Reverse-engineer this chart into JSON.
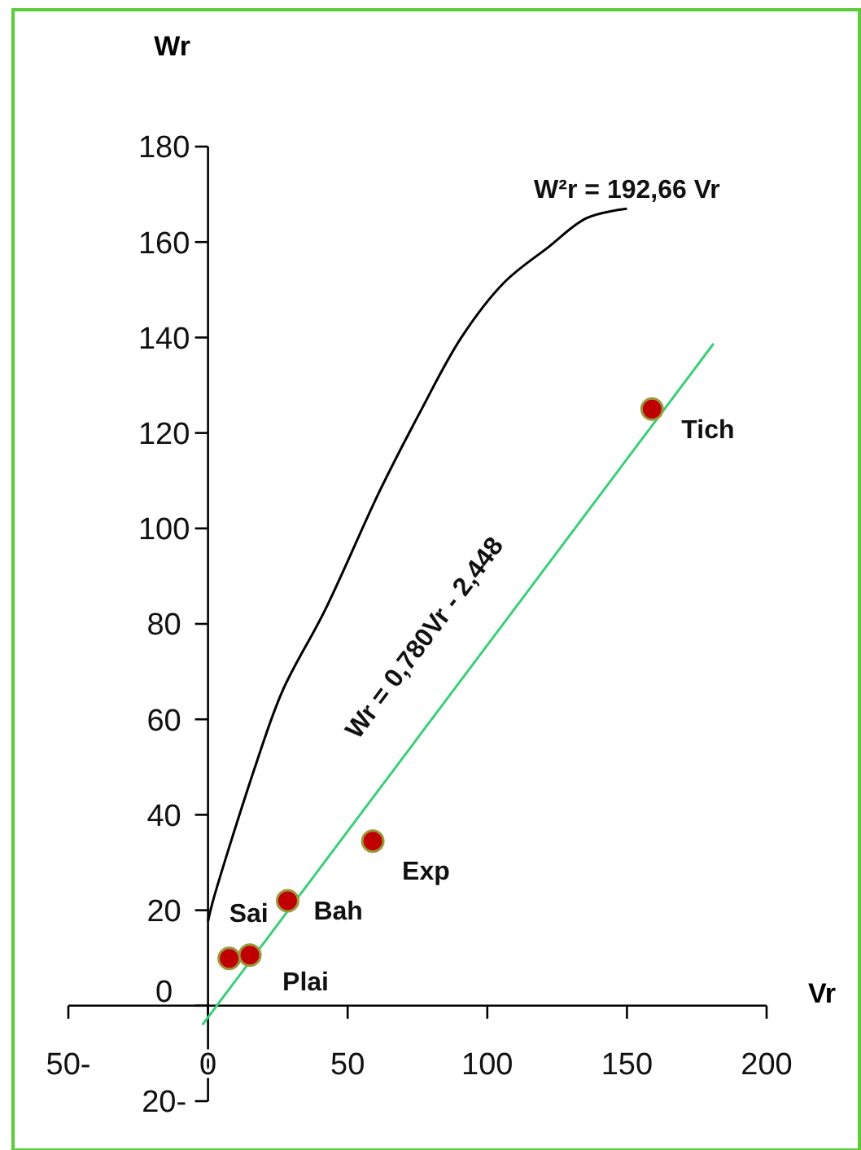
{
  "chart_data": {
    "type": "scatter",
    "xlabel": "Vr",
    "ylabel": "Wr",
    "xlim": [
      -50,
      200
    ],
    "ylim": [
      -20,
      180
    ],
    "xticks": [
      {
        "value": -50,
        "label": "50-"
      },
      0,
      50,
      100,
      150,
      200
    ],
    "yticks": [
      {
        "value": -20,
        "label": "20-"
      },
      0,
      20,
      40,
      60,
      80,
      100,
      120,
      140,
      160,
      180
    ],
    "grid": false,
    "series": [
      {
        "type": "line",
        "color": "#000000",
        "x": [
          0,
          1.7,
          17.4,
          26.7,
          42,
          61.6,
          75.6,
          90.7,
          106,
          122,
          135.5,
          150
        ],
        "values": [
          17.7,
          21.8,
          51,
          66,
          83,
          108,
          124,
          140,
          151.5,
          159,
          165,
          167
        ]
      },
      {
        "type": "line",
        "color": "#3ccf7a",
        "x": [
          -2,
          181
        ],
        "values": [
          -4,
          138.7
        ]
      },
      {
        "marker": "circle",
        "color": "#c00000",
        "x": [
          7.6,
          15,
          28.5,
          59,
          159
        ],
        "values": [
          9.9,
          10.6,
          22,
          34.5,
          125
        ]
      }
    ],
    "annotations": [
      {
        "text": "Sai",
        "x": 7.6,
        "y": 9.9
      },
      {
        "text": "Plai",
        "x": 15,
        "y": 10.6
      },
      {
        "text": "Bah",
        "x": 28.5,
        "y": 22
      },
      {
        "text": "Exp",
        "x": 59,
        "y": 34.5
      },
      {
        "text": "Tich",
        "x": 159,
        "y": 125
      },
      {
        "text": "W²r = 192,66 Vr",
        "x": 150,
        "y": 167
      },
      "Wr = 0,780Vr - 2,448"
    ]
  }
}
